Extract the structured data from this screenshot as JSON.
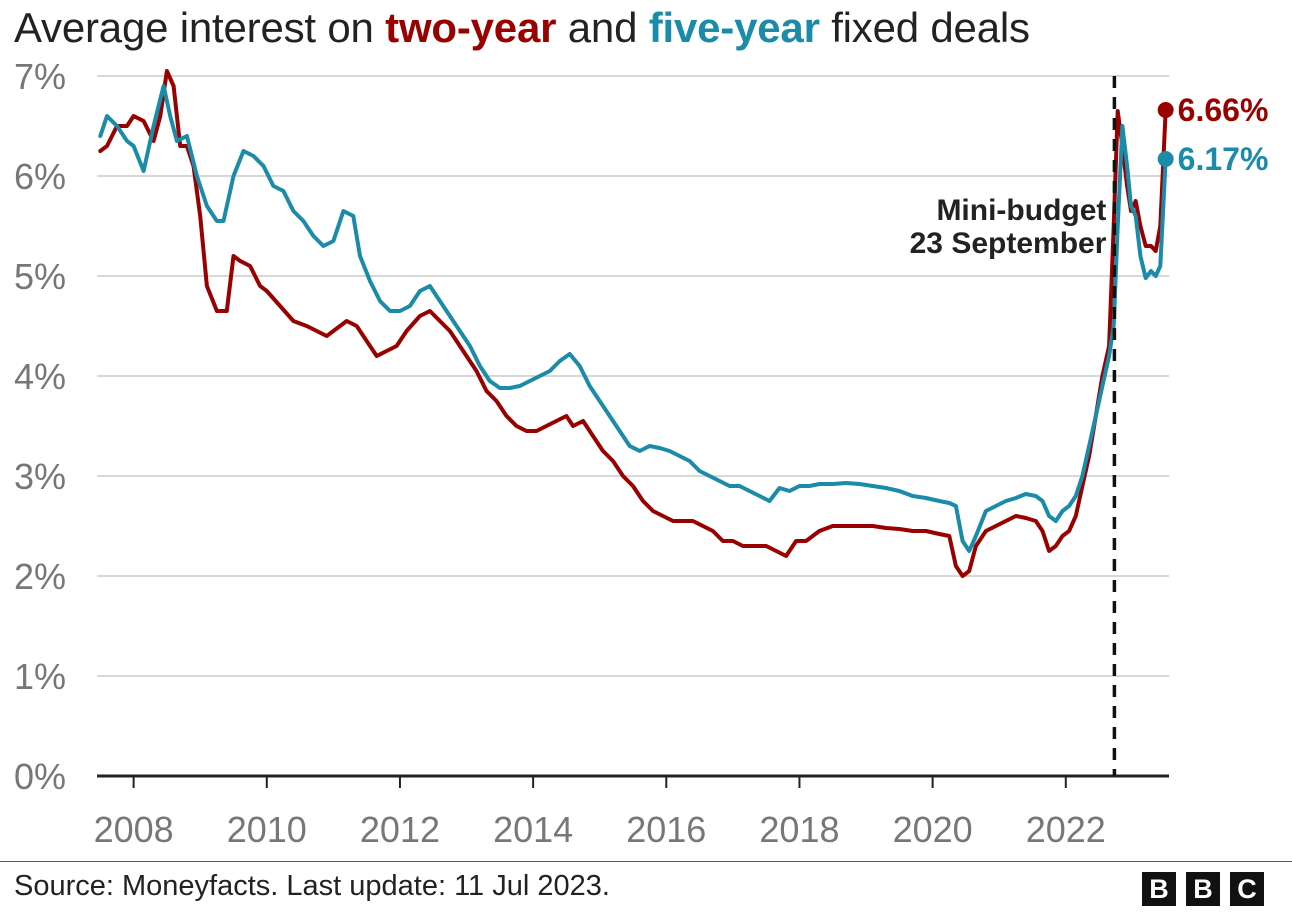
{
  "title": {
    "prefix": "Average interest on",
    "two_year": "two-year",
    "middle": "and",
    "five_year": "five-year",
    "suffix": "fixed deals"
  },
  "source": "Source: Moneyfacts. Last update: 11 Jul 2023.",
  "logo": [
    "B",
    "B",
    "C"
  ],
  "colors": {
    "two_year": "#990000",
    "five_year": "#1a8ba8",
    "grid": "#cccccc",
    "axis": "#222222",
    "tick_label": "#777777"
  },
  "chart_data": {
    "type": "line",
    "title": "Average interest on two-year and five-year fixed deals",
    "xlabel": "",
    "ylabel": "",
    "xlim": [
      2007.45,
      2023.55
    ],
    "ylim": [
      0,
      7
    ],
    "y_ticks": [
      "0%",
      "1%",
      "2%",
      "3%",
      "4%",
      "5%",
      "6%",
      "7%"
    ],
    "x_ticks": [
      "2008",
      "2010",
      "2012",
      "2014",
      "2016",
      "2018",
      "2020",
      "2022"
    ],
    "grid": true,
    "annotation": {
      "lines": [
        "Mini-budget",
        "23 September"
      ],
      "x": 2022.73
    },
    "end_labels": {
      "two_year": "6.66%",
      "five_year": "6.17%"
    },
    "series": [
      {
        "key": "two_year",
        "x": [
          2007.5,
          2007.6,
          2007.75,
          2007.9,
          2008.0,
          2008.15,
          2008.3,
          2008.4,
          2008.5,
          2008.6,
          2008.7,
          2008.8,
          2008.9,
          2009.0,
          2009.1,
          2009.25,
          2009.4,
          2009.5,
          2009.6,
          2009.75,
          2009.9,
          2010.0,
          2010.2,
          2010.4,
          2010.6,
          2010.75,
          2010.9,
          2011.0,
          2011.2,
          2011.35,
          2011.5,
          2011.65,
          2011.8,
          2011.95,
          2012.1,
          2012.3,
          2012.45,
          2012.6,
          2012.75,
          2012.9,
          2013.0,
          2013.15,
          2013.3,
          2013.45,
          2013.6,
          2013.75,
          2013.9,
          2014.05,
          2014.2,
          2014.35,
          2014.5,
          2014.6,
          2014.75,
          2014.9,
          2015.05,
          2015.2,
          2015.35,
          2015.5,
          2015.65,
          2015.8,
          2015.95,
          2016.1,
          2016.25,
          2016.4,
          2016.55,
          2016.7,
          2016.85,
          2017.0,
          2017.15,
          2017.3,
          2017.5,
          2017.65,
          2017.8,
          2017.95,
          2018.1,
          2018.3,
          2018.5,
          2018.7,
          2018.9,
          2019.1,
          2019.3,
          2019.5,
          2019.7,
          2019.9,
          2020.1,
          2020.25,
          2020.35,
          2020.45,
          2020.55,
          2020.65,
          2020.8,
          2020.95,
          2021.1,
          2021.25,
          2021.4,
          2021.55,
          2021.65,
          2021.75,
          2021.85,
          2021.95,
          2022.05,
          2022.15,
          2022.25,
          2022.35,
          2022.45,
          2022.55,
          2022.65,
          2022.72,
          2022.78,
          2022.85,
          2022.92,
          2022.98,
          2023.05,
          2023.12,
          2023.2,
          2023.28,
          2023.35,
          2023.42,
          2023.5
        ],
        "y": [
          6.25,
          6.3,
          6.5,
          6.5,
          6.6,
          6.55,
          6.35,
          6.6,
          7.05,
          6.9,
          6.3,
          6.3,
          6.1,
          5.6,
          4.9,
          4.65,
          4.65,
          5.2,
          5.15,
          5.1,
          4.9,
          4.85,
          4.7,
          4.55,
          4.5,
          4.45,
          4.4,
          4.45,
          4.55,
          4.5,
          4.35,
          4.2,
          4.25,
          4.3,
          4.45,
          4.6,
          4.65,
          4.55,
          4.45,
          4.3,
          4.2,
          4.05,
          3.85,
          3.75,
          3.6,
          3.5,
          3.45,
          3.45,
          3.5,
          3.55,
          3.6,
          3.5,
          3.55,
          3.4,
          3.25,
          3.15,
          3.0,
          2.9,
          2.75,
          2.65,
          2.6,
          2.55,
          2.55,
          2.55,
          2.5,
          2.45,
          2.35,
          2.35,
          2.3,
          2.3,
          2.3,
          2.25,
          2.2,
          2.35,
          2.35,
          2.45,
          2.5,
          2.5,
          2.5,
          2.5,
          2.48,
          2.47,
          2.45,
          2.45,
          2.42,
          2.4,
          2.1,
          2.0,
          2.05,
          2.3,
          2.45,
          2.5,
          2.55,
          2.6,
          2.58,
          2.55,
          2.45,
          2.25,
          2.3,
          2.4,
          2.45,
          2.6,
          2.9,
          3.2,
          3.6,
          4.0,
          4.3,
          5.5,
          6.65,
          6.3,
          5.9,
          5.65,
          5.75,
          5.5,
          5.3,
          5.3,
          5.25,
          5.5,
          6.66
        ]
      },
      {
        "key": "five_year",
        "x": [
          2007.5,
          2007.6,
          2007.75,
          2007.9,
          2008.0,
          2008.15,
          2008.3,
          2008.45,
          2008.55,
          2008.65,
          2008.8,
          2008.95,
          2009.1,
          2009.25,
          2009.35,
          2009.5,
          2009.65,
          2009.8,
          2009.95,
          2010.1,
          2010.25,
          2010.4,
          2010.55,
          2010.7,
          2010.85,
          2011.0,
          2011.15,
          2011.3,
          2011.4,
          2011.55,
          2011.7,
          2011.85,
          2012.0,
          2012.15,
          2012.3,
          2012.45,
          2012.6,
          2012.75,
          2012.9,
          2013.05,
          2013.2,
          2013.35,
          2013.5,
          2013.65,
          2013.8,
          2013.95,
          2014.1,
          2014.25,
          2014.4,
          2014.55,
          2014.7,
          2014.85,
          2015.0,
          2015.15,
          2015.3,
          2015.45,
          2015.6,
          2015.75,
          2015.9,
          2016.05,
          2016.2,
          2016.35,
          2016.5,
          2016.65,
          2016.8,
          2016.95,
          2017.1,
          2017.25,
          2017.4,
          2017.55,
          2017.7,
          2017.85,
          2018.0,
          2018.15,
          2018.3,
          2018.5,
          2018.7,
          2018.9,
          2019.1,
          2019.3,
          2019.5,
          2019.7,
          2019.9,
          2020.1,
          2020.25,
          2020.35,
          2020.45,
          2020.55,
          2020.65,
          2020.8,
          2020.95,
          2021.1,
          2021.25,
          2021.4,
          2021.55,
          2021.65,
          2021.75,
          2021.85,
          2021.95,
          2022.05,
          2022.15,
          2022.25,
          2022.35,
          2022.45,
          2022.55,
          2022.65,
          2022.72,
          2022.78,
          2022.85,
          2022.92,
          2022.98,
          2023.05,
          2023.12,
          2023.2,
          2023.28,
          2023.35,
          2023.42,
          2023.5
        ],
        "y": [
          6.4,
          6.6,
          6.5,
          6.35,
          6.3,
          6.05,
          6.5,
          6.9,
          6.6,
          6.35,
          6.4,
          6.0,
          5.7,
          5.55,
          5.55,
          6.0,
          6.25,
          6.2,
          6.1,
          5.9,
          5.85,
          5.65,
          5.55,
          5.4,
          5.3,
          5.35,
          5.65,
          5.6,
          5.2,
          4.95,
          4.75,
          4.65,
          4.65,
          4.7,
          4.85,
          4.9,
          4.75,
          4.6,
          4.45,
          4.3,
          4.1,
          3.95,
          3.88,
          3.88,
          3.9,
          3.95,
          4.0,
          4.05,
          4.15,
          4.22,
          4.1,
          3.9,
          3.75,
          3.6,
          3.45,
          3.3,
          3.25,
          3.3,
          3.28,
          3.25,
          3.2,
          3.15,
          3.05,
          3.0,
          2.95,
          2.9,
          2.9,
          2.85,
          2.8,
          2.75,
          2.88,
          2.85,
          2.9,
          2.9,
          2.92,
          2.92,
          2.93,
          2.92,
          2.9,
          2.88,
          2.85,
          2.8,
          2.78,
          2.75,
          2.73,
          2.7,
          2.35,
          2.25,
          2.4,
          2.65,
          2.7,
          2.75,
          2.78,
          2.82,
          2.8,
          2.75,
          2.6,
          2.55,
          2.65,
          2.7,
          2.8,
          3.0,
          3.3,
          3.6,
          3.9,
          4.2,
          4.5,
          5.5,
          6.5,
          6.1,
          5.7,
          5.6,
          5.2,
          4.98,
          5.05,
          5.0,
          5.1,
          6.17
        ]
      }
    ]
  }
}
